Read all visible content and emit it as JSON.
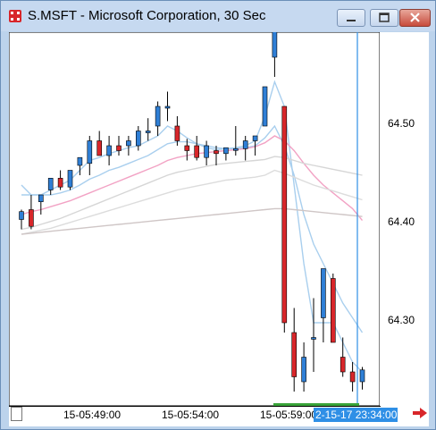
{
  "window": {
    "title": "S.MSFT - Microsoft Corporation, 30 Sec"
  },
  "price_axis": {
    "labels": [
      "64.50",
      "64.40",
      "64.30"
    ]
  },
  "time_axis": {
    "labels": [
      "15-05:49:00",
      "15-05:54:00",
      "15-05:59:00"
    ],
    "cursor_label": "2-15-17 23:34:00"
  },
  "colors": {
    "up": "#2f7fd6",
    "down": "#d8262a",
    "ma_fast": "#a9cfee",
    "ma_pink": "#f2a2c4",
    "ma_gray": "#d6d6d6",
    "cursor": "#2f8fe6"
  },
  "chart_data": {
    "type": "candlestick",
    "interval": "30 Sec",
    "ylim": [
      64.22,
      64.67
    ],
    "candles": [
      {
        "o": 64.405,
        "h": 64.415,
        "l": 64.395,
        "c": 64.413
      },
      {
        "o": 64.415,
        "h": 64.43,
        "l": 64.395,
        "c": 64.398
      },
      {
        "o": 64.423,
        "h": 64.43,
        "l": 64.41,
        "c": 64.43
      },
      {
        "o": 64.435,
        "h": 64.447,
        "l": 64.43,
        "c": 64.447
      },
      {
        "o": 64.447,
        "h": 64.455,
        "l": 64.435,
        "c": 64.438
      },
      {
        "o": 64.438,
        "h": 64.455,
        "l": 64.435,
        "c": 64.455
      },
      {
        "o": 64.46,
        "h": 64.468,
        "l": 64.45,
        "c": 64.468
      },
      {
        "o": 64.462,
        "h": 64.49,
        "l": 64.45,
        "c": 64.485
      },
      {
        "o": 64.485,
        "h": 64.495,
        "l": 64.47,
        "c": 64.47
      },
      {
        "o": 64.47,
        "h": 64.49,
        "l": 64.46,
        "c": 64.48
      },
      {
        "o": 64.48,
        "h": 64.49,
        "l": 64.47,
        "c": 64.475
      },
      {
        "o": 64.48,
        "h": 64.49,
        "l": 64.47,
        "c": 64.485
      },
      {
        "o": 64.48,
        "h": 64.5,
        "l": 64.475,
        "c": 64.495
      },
      {
        "o": 64.495,
        "h": 64.508,
        "l": 64.485,
        "c": 64.495
      },
      {
        "o": 64.5,
        "h": 64.525,
        "l": 64.49,
        "c": 64.52
      },
      {
        "o": 64.52,
        "h": 64.535,
        "l": 64.505,
        "c": 64.52
      },
      {
        "o": 64.5,
        "h": 64.51,
        "l": 64.48,
        "c": 64.485
      },
      {
        "o": 64.48,
        "h": 64.487,
        "l": 64.465,
        "c": 64.475
      },
      {
        "o": 64.48,
        "h": 64.49,
        "l": 64.465,
        "c": 64.468
      },
      {
        "o": 64.468,
        "h": 64.485,
        "l": 64.46,
        "c": 64.48
      },
      {
        "o": 64.475,
        "h": 64.48,
        "l": 64.46,
        "c": 64.472
      },
      {
        "o": 64.472,
        "h": 64.478,
        "l": 64.465,
        "c": 64.478
      },
      {
        "o": 64.477,
        "h": 64.5,
        "l": 64.47,
        "c": 64.477
      },
      {
        "o": 64.477,
        "h": 64.49,
        "l": 64.465,
        "c": 64.485
      },
      {
        "o": 64.485,
        "h": 64.49,
        "l": 64.47,
        "c": 64.49
      },
      {
        "o": 64.5,
        "h": 64.54,
        "l": 64.5,
        "c": 64.54
      },
      {
        "o": 64.57,
        "h": 64.6,
        "l": 64.55,
        "c": 64.6
      },
      {
        "o": 64.52,
        "h": 64.52,
        "l": 64.29,
        "c": 64.3
      },
      {
        "o": 64.29,
        "h": 64.315,
        "l": 64.23,
        "c": 64.245
      },
      {
        "o": 64.24,
        "h": 64.28,
        "l": 64.23,
        "c": 64.265
      },
      {
        "o": 64.285,
        "h": 64.325,
        "l": 64.25,
        "c": 64.285
      },
      {
        "o": 64.305,
        "h": 64.355,
        "l": 64.28,
        "c": 64.355
      },
      {
        "o": 64.345,
        "h": 64.35,
        "l": 64.28,
        "c": 64.28
      },
      {
        "o": 64.265,
        "h": 64.285,
        "l": 64.245,
        "c": 64.25
      },
      {
        "o": 64.25,
        "h": 64.26,
        "l": 64.23,
        "c": 64.24
      },
      {
        "o": 64.24,
        "h": 64.255,
        "l": 64.232,
        "c": 64.252
      }
    ],
    "moving_averages": [
      {
        "color": "#a9cfee",
        "values": [
          64.44,
          64.43,
          64.43,
          64.435,
          64.44,
          64.445,
          64.455,
          64.465,
          64.468,
          64.472,
          64.475,
          64.478,
          64.48,
          64.485,
          64.49,
          64.5,
          64.495,
          64.488,
          64.482,
          64.478,
          64.476,
          64.477,
          64.478,
          64.48,
          64.485,
          64.51,
          64.545,
          64.52,
          64.44,
          64.36,
          64.3,
          64.3,
          64.3,
          64.28,
          64.26,
          64.25
        ]
      },
      {
        "color": "#a9cfee",
        "values": [
          64.43,
          64.43,
          64.43,
          64.43,
          64.432,
          64.435,
          64.44,
          64.446,
          64.45,
          64.455,
          64.458,
          64.462,
          64.466,
          64.47,
          64.476,
          64.482,
          64.484,
          64.484,
          64.482,
          64.48,
          64.478,
          64.477,
          64.477,
          64.478,
          64.48,
          64.488,
          64.5,
          64.48,
          64.45,
          64.41,
          64.38,
          64.36,
          64.34,
          64.32,
          64.305,
          64.29
        ]
      },
      {
        "color": "#f2a2c4",
        "values": [
          64.41,
          64.413,
          64.415,
          64.418,
          64.421,
          64.424,
          64.428,
          64.432,
          64.436,
          64.44,
          64.444,
          64.448,
          64.452,
          64.456,
          64.46,
          64.465,
          64.468,
          64.47,
          64.472,
          64.473,
          64.474,
          64.475,
          64.476,
          64.477,
          64.479,
          64.483,
          64.49,
          64.485,
          64.475,
          64.462,
          64.45,
          64.44,
          64.432,
          64.424,
          64.416,
          64.404
        ]
      },
      {
        "color": "#d6d6d6",
        "values": [
          64.395,
          64.397,
          64.4,
          64.403,
          64.406,
          64.41,
          64.414,
          64.418,
          64.422,
          64.426,
          64.43,
          64.434,
          64.438,
          64.442,
          64.446,
          64.45,
          64.453,
          64.455,
          64.457,
          64.459,
          64.461,
          64.462,
          64.463,
          64.464,
          64.465,
          64.466,
          64.469,
          64.468,
          64.465,
          64.462,
          64.46,
          64.458,
          64.456,
          64.454,
          64.452,
          64.45
        ]
      },
      {
        "color": "#dcdcdc",
        "values": [
          64.39,
          64.392,
          64.394,
          64.396,
          64.399,
          64.402,
          64.405,
          64.408,
          64.411,
          64.414,
          64.417,
          64.42,
          64.423,
          64.426,
          64.429,
          64.432,
          64.435,
          64.437,
          64.439,
          64.441,
          64.443,
          64.445,
          64.446,
          64.447,
          64.448,
          64.45,
          64.455,
          64.452,
          64.448,
          64.444,
          64.44,
          64.437,
          64.434,
          64.431,
          64.428,
          64.425
        ]
      },
      {
        "color": "#cfc6c6",
        "values": [
          64.39,
          64.391,
          64.392,
          64.393,
          64.394,
          64.395,
          64.396,
          64.397,
          64.398,
          64.399,
          64.4,
          64.401,
          64.402,
          64.403,
          64.404,
          64.405,
          64.406,
          64.407,
          64.408,
          64.409,
          64.41,
          64.411,
          64.412,
          64.413,
          64.414,
          64.415,
          64.416,
          64.416,
          64.415,
          64.414,
          64.413,
          64.412,
          64.411,
          64.41,
          64.409,
          64.408
        ]
      }
    ]
  }
}
